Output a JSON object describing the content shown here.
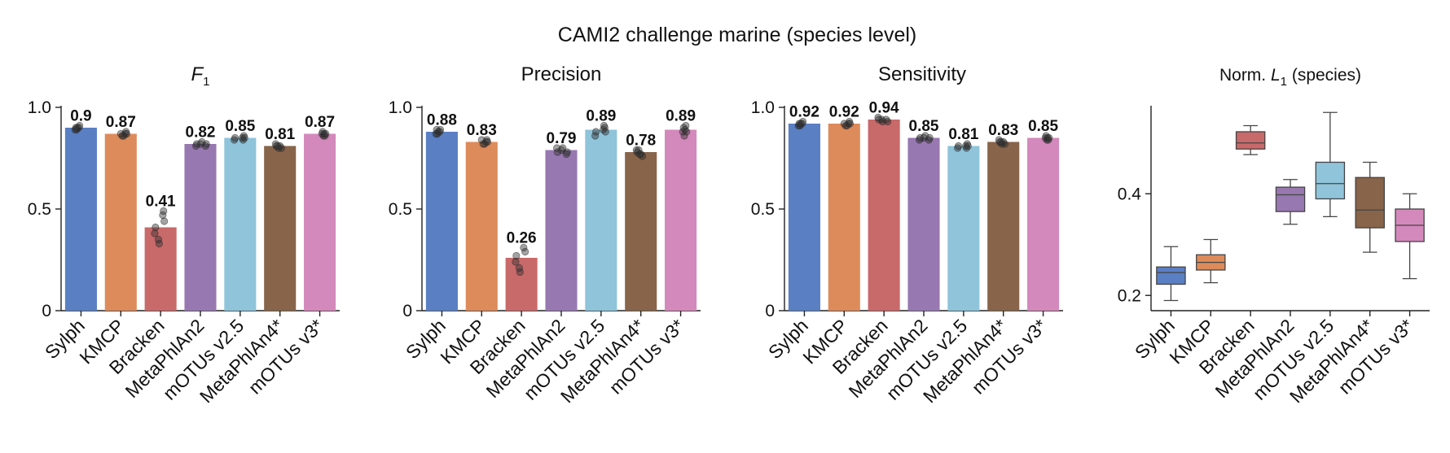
{
  "figure": {
    "suptitle": "CAMI2 challenge marine (species level)"
  },
  "chart_data": [
    {
      "type": "bar",
      "title": "F1",
      "title_main": "F",
      "title_sub": "1",
      "xlabel": "",
      "ylabel": "",
      "ylim": [
        0,
        1.0
      ],
      "yticks": [
        "0",
        "0.5",
        "1.0"
      ],
      "categories": [
        "Sylph",
        "KMCP",
        "Bracken",
        "MetaPhlAn2",
        "mOTUs v2.5",
        "MetaPhlAn4*",
        "mOTUs v3*"
      ],
      "values": [
        0.9,
        0.87,
        0.41,
        0.82,
        0.85,
        0.81,
        0.87
      ],
      "value_labels": [
        "0.9",
        "0.87",
        "0.41",
        "0.82",
        "0.85",
        "0.81",
        "0.87"
      ],
      "points": [
        [
          0.89,
          0.9,
          0.91,
          0.9,
          0.89,
          0.9
        ],
        [
          0.86,
          0.87,
          0.88,
          0.87,
          0.86,
          0.87
        ],
        [
          0.33,
          0.35,
          0.38,
          0.41,
          0.44,
          0.47,
          0.49
        ],
        [
          0.81,
          0.82,
          0.83,
          0.82,
          0.81,
          0.82
        ],
        [
          0.84,
          0.85,
          0.86,
          0.85,
          0.84,
          0.85
        ],
        [
          0.8,
          0.81,
          0.82,
          0.81,
          0.8,
          0.81
        ],
        [
          0.86,
          0.87,
          0.88,
          0.87,
          0.86,
          0.87
        ]
      ]
    },
    {
      "type": "bar",
      "title": "Precision",
      "title_main": "Precision",
      "title_sub": "",
      "xlabel": "",
      "ylabel": "",
      "ylim": [
        0,
        1.0
      ],
      "yticks": [
        "0",
        "0.5",
        "1.0"
      ],
      "categories": [
        "Sylph",
        "KMCP",
        "Bracken",
        "MetaPhlAn2",
        "mOTUs v2.5",
        "MetaPhlAn4*",
        "mOTUs v3*"
      ],
      "values": [
        0.88,
        0.83,
        0.26,
        0.79,
        0.89,
        0.78,
        0.89
      ],
      "value_labels": [
        "0.88",
        "0.83",
        "0.26",
        "0.79",
        "0.89",
        "0.78",
        "0.89"
      ],
      "points": [
        [
          0.87,
          0.88,
          0.89,
          0.88,
          0.87,
          0.89
        ],
        [
          0.82,
          0.83,
          0.84,
          0.83,
          0.82,
          0.84
        ],
        [
          0.19,
          0.21,
          0.24,
          0.27,
          0.29,
          0.31
        ],
        [
          0.77,
          0.78,
          0.8,
          0.79,
          0.8,
          0.78
        ],
        [
          0.86,
          0.88,
          0.9,
          0.89,
          0.91,
          0.88
        ],
        [
          0.76,
          0.77,
          0.79,
          0.78,
          0.77,
          0.79
        ],
        [
          0.86,
          0.88,
          0.9,
          0.89,
          0.91,
          0.88
        ]
      ]
    },
    {
      "type": "bar",
      "title": "Sensitivity",
      "title_main": "Sensitivity",
      "title_sub": "",
      "xlabel": "",
      "ylabel": "",
      "ylim": [
        0,
        1.0
      ],
      "yticks": [
        "0",
        "0.5",
        "1.0"
      ],
      "categories": [
        "Sylph",
        "KMCP",
        "Bracken",
        "MetaPhlAn2",
        "mOTUs v2.5",
        "MetaPhlAn4*",
        "mOTUs v3*"
      ],
      "values": [
        0.92,
        0.92,
        0.94,
        0.85,
        0.81,
        0.83,
        0.85
      ],
      "value_labels": [
        "0.92",
        "0.92",
        "0.94",
        "0.85",
        "0.81",
        "0.83",
        "0.85"
      ],
      "points": [
        [
          0.91,
          0.92,
          0.93,
          0.92,
          0.91,
          0.92
        ],
        [
          0.91,
          0.92,
          0.93,
          0.92,
          0.91,
          0.92
        ],
        [
          0.93,
          0.94,
          0.95,
          0.94,
          0.93,
          0.94
        ],
        [
          0.84,
          0.85,
          0.86,
          0.85,
          0.84,
          0.85
        ],
        [
          0.8,
          0.81,
          0.82,
          0.81,
          0.8,
          0.81
        ],
        [
          0.82,
          0.83,
          0.84,
          0.83,
          0.82,
          0.83
        ],
        [
          0.84,
          0.85,
          0.86,
          0.85,
          0.84,
          0.85
        ]
      ]
    },
    {
      "type": "box",
      "title": "Norm. L1 (species)",
      "title_pre": "Norm. ",
      "title_main": "L",
      "title_sub": "1",
      "title_post": " (species)",
      "xlabel": "",
      "ylabel": "",
      "ylim": [
        0.17,
        0.57
      ],
      "yticks": [
        "0.2",
        "0.4"
      ],
      "ytick_values": [
        0.2,
        0.4
      ],
      "categories": [
        "Sylph",
        "KMCP",
        "Bracken",
        "MetaPhlAn2",
        "mOTUs v2.5",
        "MetaPhlAn4*",
        "mOTUs v3*"
      ],
      "boxes": [
        {
          "whislo": 0.19,
          "q1": 0.222,
          "med": 0.245,
          "q3": 0.256,
          "whishi": 0.296
        },
        {
          "whislo": 0.225,
          "q1": 0.25,
          "med": 0.265,
          "q3": 0.28,
          "whishi": 0.31
        },
        {
          "whislo": 0.477,
          "q1": 0.488,
          "med": 0.5,
          "q3": 0.522,
          "whishi": 0.534
        },
        {
          "whislo": 0.34,
          "q1": 0.365,
          "med": 0.398,
          "q3": 0.413,
          "whishi": 0.428
        },
        {
          "whislo": 0.355,
          "q1": 0.39,
          "med": 0.42,
          "q3": 0.462,
          "whishi": 0.56
        },
        {
          "whislo": 0.285,
          "q1": 0.333,
          "med": 0.368,
          "q3": 0.432,
          "whishi": 0.462
        },
        {
          "whislo": 0.233,
          "q1": 0.306,
          "med": 0.338,
          "q3": 0.37,
          "whishi": 0.4
        }
      ]
    }
  ],
  "colors": {
    "series": [
      "#5a7fc3",
      "#dd8b5b",
      "#c8696a",
      "#9878b0",
      "#8fc4da",
      "#87644a",
      "#d389bb"
    ],
    "axis": "#222222",
    "text": "#111111"
  }
}
